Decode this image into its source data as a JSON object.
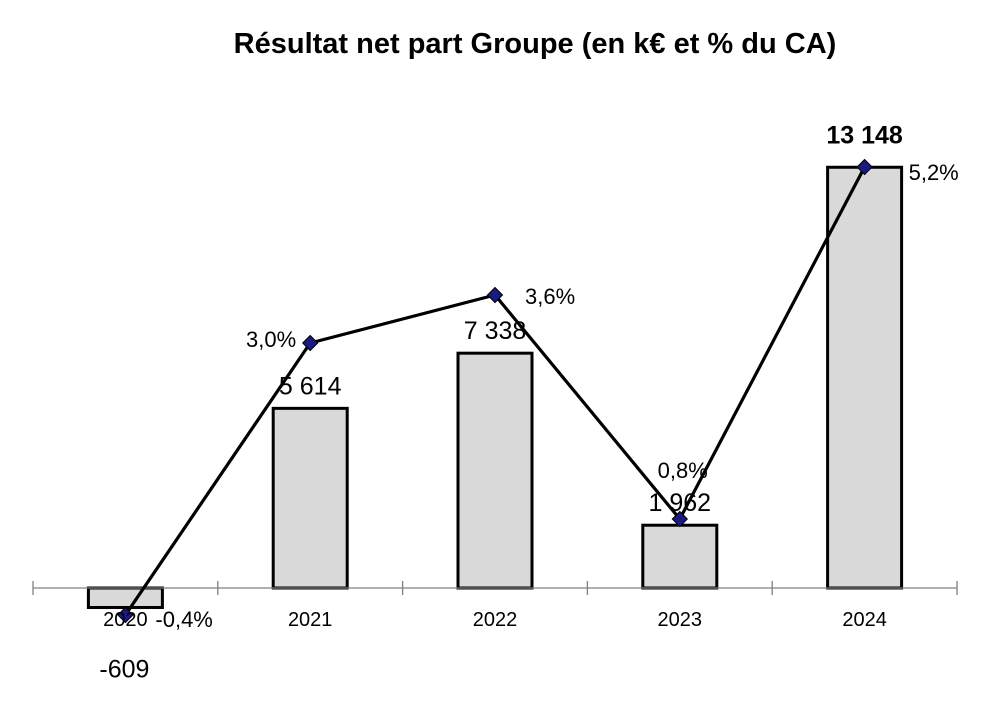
{
  "chart_data": {
    "type": "bar",
    "title": "Résultat net part Groupe (en k€ et % du CA)",
    "xlabel": "",
    "ylabel": "",
    "categories": [
      "2020",
      "2021",
      "2022",
      "2023",
      "2024"
    ],
    "series": [
      {
        "type": "bar",
        "values": [
          -609,
          5614,
          7338,
          1962,
          13148
        ],
        "labels": [
          "-609",
          "5 614",
          "7 338",
          "1 962",
          "13 148"
        ],
        "color": "#d9d9d9"
      },
      {
        "type": "line",
        "values": [
          -0.4,
          3.0,
          3.6,
          0.8,
          5.2
        ],
        "labels": [
          "-0,4%",
          "3,0%",
          "3,6%",
          "0,8%",
          "5,2%"
        ],
        "color": "#000000",
        "marker_color": "#1a1a80"
      }
    ],
    "grid": false,
    "legend": "none"
  }
}
